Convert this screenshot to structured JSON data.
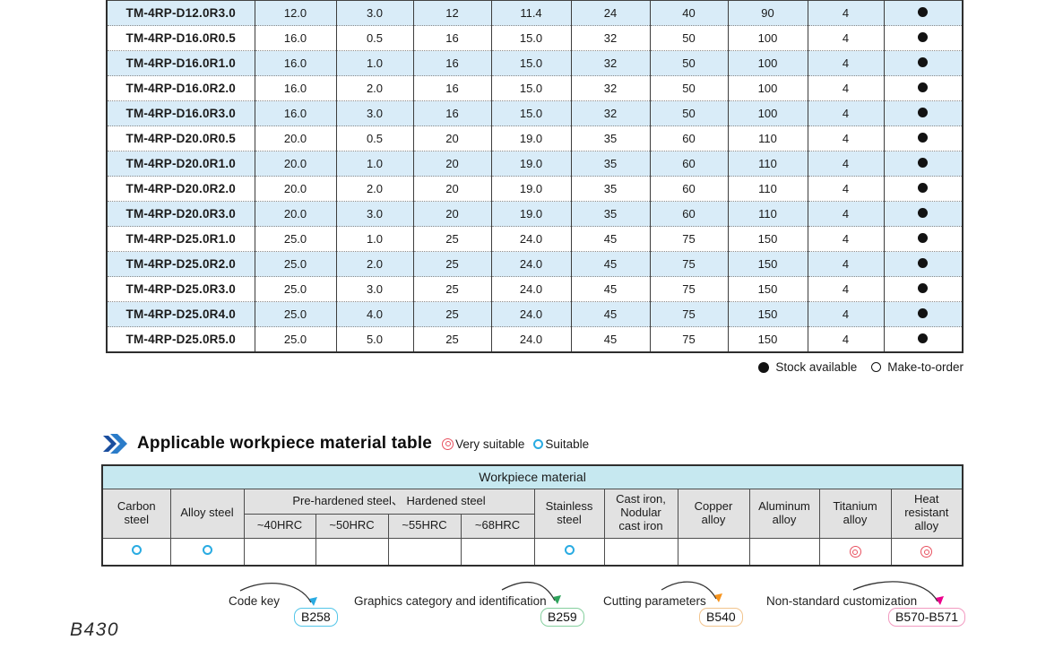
{
  "spec_table": {
    "rows": [
      {
        "model": "TM-4RP-D12.0R3.0",
        "values": [
          "12.0",
          "3.0",
          "12",
          "11.4",
          "24",
          "40",
          "90",
          "4"
        ],
        "stock": "filled"
      },
      {
        "model": "TM-4RP-D16.0R0.5",
        "values": [
          "16.0",
          "0.5",
          "16",
          "15.0",
          "32",
          "50",
          "100",
          "4"
        ],
        "stock": "filled"
      },
      {
        "model": "TM-4RP-D16.0R1.0",
        "values": [
          "16.0",
          "1.0",
          "16",
          "15.0",
          "32",
          "50",
          "100",
          "4"
        ],
        "stock": "filled"
      },
      {
        "model": "TM-4RP-D16.0R2.0",
        "values": [
          "16.0",
          "2.0",
          "16",
          "15.0",
          "32",
          "50",
          "100",
          "4"
        ],
        "stock": "filled"
      },
      {
        "model": "TM-4RP-D16.0R3.0",
        "values": [
          "16.0",
          "3.0",
          "16",
          "15.0",
          "32",
          "50",
          "100",
          "4"
        ],
        "stock": "filled"
      },
      {
        "model": "TM-4RP-D20.0R0.5",
        "values": [
          "20.0",
          "0.5",
          "20",
          "19.0",
          "35",
          "60",
          "110",
          "4"
        ],
        "stock": "filled"
      },
      {
        "model": "TM-4RP-D20.0R1.0",
        "values": [
          "20.0",
          "1.0",
          "20",
          "19.0",
          "35",
          "60",
          "110",
          "4"
        ],
        "stock": "filled"
      },
      {
        "model": "TM-4RP-D20.0R2.0",
        "values": [
          "20.0",
          "2.0",
          "20",
          "19.0",
          "35",
          "60",
          "110",
          "4"
        ],
        "stock": "filled"
      },
      {
        "model": "TM-4RP-D20.0R3.0",
        "values": [
          "20.0",
          "3.0",
          "20",
          "19.0",
          "35",
          "60",
          "110",
          "4"
        ],
        "stock": "filled"
      },
      {
        "model": "TM-4RP-D25.0R1.0",
        "values": [
          "25.0",
          "1.0",
          "25",
          "24.0",
          "45",
          "75",
          "150",
          "4"
        ],
        "stock": "filled"
      },
      {
        "model": "TM-4RP-D25.0R2.0",
        "values": [
          "25.0",
          "2.0",
          "25",
          "24.0",
          "45",
          "75",
          "150",
          "4"
        ],
        "stock": "filled"
      },
      {
        "model": "TM-4RP-D25.0R3.0",
        "values": [
          "25.0",
          "3.0",
          "25",
          "24.0",
          "45",
          "75",
          "150",
          "4"
        ],
        "stock": "filled"
      },
      {
        "model": "TM-4RP-D25.0R4.0",
        "values": [
          "25.0",
          "4.0",
          "25",
          "24.0",
          "45",
          "75",
          "150",
          "4"
        ],
        "stock": "filled"
      },
      {
        "model": "TM-4RP-D25.0R5.0",
        "values": [
          "25.0",
          "5.0",
          "25",
          "24.0",
          "45",
          "75",
          "150",
          "4"
        ],
        "stock": "filled"
      }
    ],
    "legend": {
      "stock_label": "Stock available",
      "mto_label": "Make-to-order"
    },
    "alt_row_color": "#d9ecf8"
  },
  "material_section": {
    "title": "Applicable workpiece material table",
    "legend": {
      "very_label": "Very suitable",
      "suitable_label": "Suitable"
    },
    "table": {
      "top_header": "Workpiece material",
      "col_carbon": "Carbon\nsteel",
      "col_alloy": "Alloy steel",
      "group_prehardened": "Pre-hardened steel、 Hardened steel",
      "sub_headers": [
        "~40HRC",
        "~50HRC",
        "~55HRC",
        "~68HRC"
      ],
      "col_stainless": "Stainless\nsteel",
      "col_castiron": "Cast iron,\nNodular\ncast iron",
      "col_copper": "Copper\nalloy",
      "col_aluminum": "Aluminum\nalloy",
      "col_titanium": "Titanium\nalloy",
      "col_heat": "Heat\nresistant\nalloy",
      "marks": [
        "suitable",
        "suitable",
        "",
        "",
        "",
        "",
        "suitable",
        "",
        "",
        "",
        "very",
        "very"
      ]
    },
    "colors": {
      "suitable_mark": "#29abe2",
      "very_mark": "#e8505f",
      "top_header_bg": "#c6e8f0",
      "col_header_bg": "#e2e2e2"
    }
  },
  "footer": {
    "links": [
      {
        "label": "Code key",
        "badge": "B258",
        "badge_border": "#52c5e8",
        "arrow_color": "#29abe2"
      },
      {
        "label": "Graphics category and identification",
        "badge": "B259",
        "badge_border": "#85cf9e",
        "arrow_color": "#2fa45c"
      },
      {
        "label": "Cutting parameters",
        "badge": "B540",
        "badge_border": "#f2c48d",
        "arrow_color": "#f7941d"
      },
      {
        "label": "Non-standard customization",
        "badge": "B570-B571",
        "badge_border": "#f29ac0",
        "arrow_color": "#ec008c"
      }
    ]
  },
  "page": {
    "page_number": "B430"
  },
  "heading_icon_colors": {
    "back": "#1a4e9e",
    "front": "#2b7cc9"
  }
}
